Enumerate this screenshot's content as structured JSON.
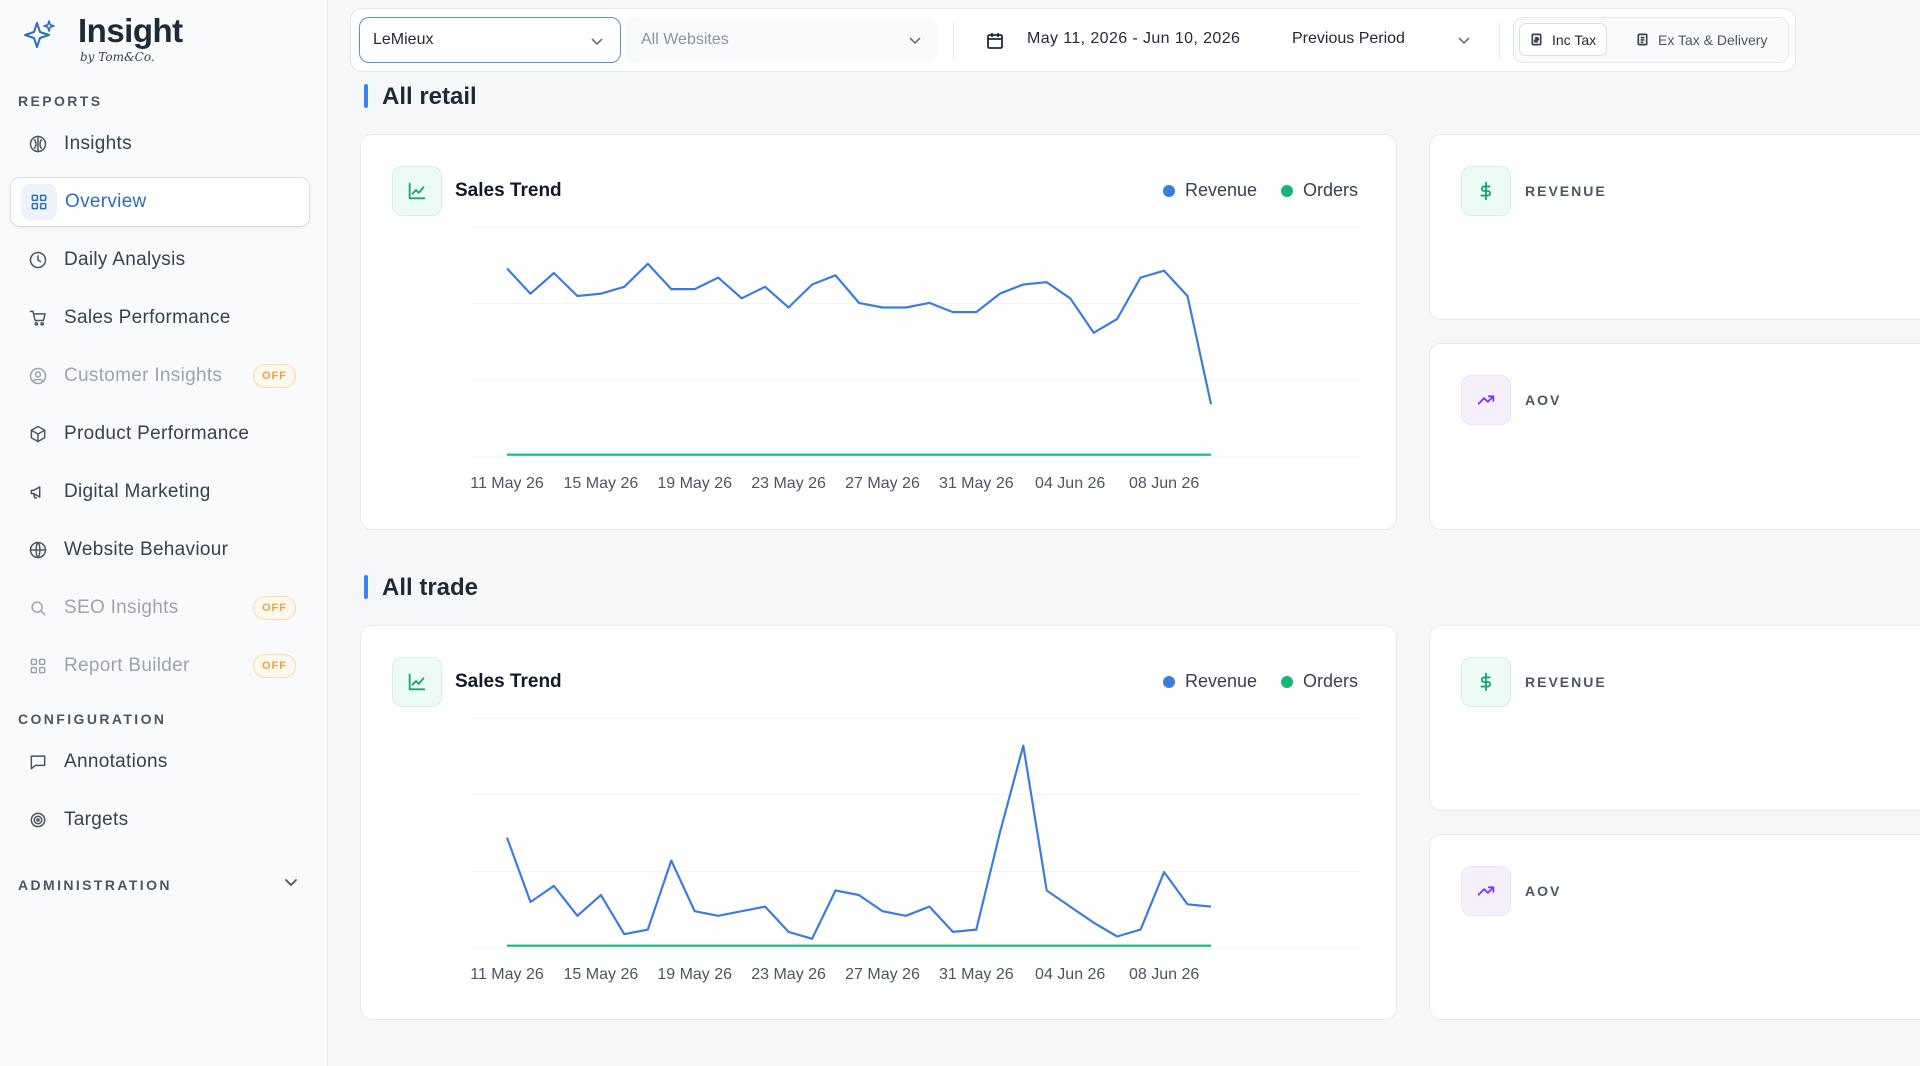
{
  "brand": {
    "title": "Insight",
    "subtitle": "by Tom&Co."
  },
  "sidebar": {
    "reports_label": "REPORTS",
    "config_label": "CONFIGURATION",
    "admin_label": "ADMINISTRATION",
    "items": [
      {
        "label": "Insights",
        "icon": "insights-icon"
      },
      {
        "label": "Overview",
        "icon": "grid-icon",
        "active": true
      },
      {
        "label": "Daily Analysis",
        "icon": "clock-icon"
      },
      {
        "label": "Sales Performance",
        "icon": "cart-icon"
      },
      {
        "label": "Customer Insights",
        "icon": "user-circle-icon",
        "badge": "OFF"
      },
      {
        "label": "Product Performance",
        "icon": "box-icon"
      },
      {
        "label": "Digital Marketing",
        "icon": "megaphone-icon"
      },
      {
        "label": "Website Behaviour",
        "icon": "globe-icon"
      },
      {
        "label": "SEO Insights",
        "icon": "search-icon",
        "badge": "OFF"
      },
      {
        "label": "Report Builder",
        "icon": "grid-icon",
        "badge": "OFF"
      }
    ],
    "config_items": [
      {
        "label": "Annotations",
        "icon": "message-icon"
      },
      {
        "label": "Targets",
        "icon": "target-icon"
      }
    ]
  },
  "topbar": {
    "brand_select": "LeMieux",
    "website_select_placeholder": "All Websites",
    "date_range": "May 11, 2026 - Jun 10, 2026",
    "compare": "Previous Period",
    "tax_on": "Inc Tax",
    "tax_off": "Ex Tax & Delivery"
  },
  "sections": [
    {
      "title": "All retail",
      "card_title": "Sales Trend",
      "legend_revenue": "Revenue",
      "legend_orders": "Orders",
      "metric_revenue": "REVENUE",
      "metric_aov": "AOV"
    },
    {
      "title": "All trade",
      "card_title": "Sales Trend",
      "legend_revenue": "Revenue",
      "legend_orders": "Orders",
      "metric_revenue": "REVENUE",
      "metric_aov": "AOV"
    }
  ],
  "colors": {
    "revenue": "#3b7ddd",
    "orders": "#17b57a",
    "accent": "#2f6fb3",
    "badge": "#f0a04b"
  },
  "chart_data": [
    {
      "type": "line",
      "title": "Sales Trend",
      "x_tick_labels": [
        "11 May 26",
        "15 May 26",
        "19 May 26",
        "23 May 26",
        "27 May 26",
        "31 May 26",
        "04 Jun 26",
        "08 Jun 26"
      ],
      "x": [
        "11 May 26",
        "12 May 26",
        "13 May 26",
        "14 May 26",
        "15 May 26",
        "16 May 26",
        "17 May 26",
        "18 May 26",
        "19 May 26",
        "20 May 26",
        "21 May 26",
        "22 May 26",
        "23 May 26",
        "24 May 26",
        "25 May 26",
        "26 May 26",
        "27 May 26",
        "28 May 26",
        "29 May 26",
        "30 May 26",
        "31 May 26",
        "01 Jun 26",
        "02 Jun 26",
        "03 Jun 26",
        "04 Jun 26",
        "05 Jun 26",
        "06 Jun 26",
        "07 Jun 26",
        "08 Jun 26",
        "09 Jun 26",
        "10 Jun 26"
      ],
      "series": [
        {
          "name": "Revenue",
          "values": [
            0.82,
            0.71,
            0.8,
            0.7,
            0.71,
            0.74,
            0.84,
            0.73,
            0.73,
            0.78,
            0.69,
            0.74,
            0.65,
            0.75,
            0.79,
            0.67,
            0.65,
            0.65,
            0.67,
            0.63,
            0.63,
            0.71,
            0.75,
            0.76,
            0.69,
            0.54,
            0.6,
            0.78,
            0.81,
            0.7,
            0.23
          ]
        },
        {
          "name": "Orders",
          "values": [
            0.01,
            0.01,
            0.01,
            0.01,
            0.01,
            0.01,
            0.01,
            0.01,
            0.01,
            0.01,
            0.01,
            0.01,
            0.01,
            0.01,
            0.01,
            0.01,
            0.01,
            0.01,
            0.01,
            0.01,
            0.01,
            0.01,
            0.01,
            0.01,
            0.01,
            0.01,
            0.01,
            0.01,
            0.01,
            0.01,
            0.01
          ]
        }
      ],
      "ylim": [
        0,
        1
      ],
      "grid": true
    },
    {
      "type": "line",
      "title": "Sales Trend",
      "x_tick_labels": [
        "11 May 26",
        "15 May 26",
        "19 May 26",
        "23 May 26",
        "27 May 26",
        "31 May 26",
        "04 Jun 26",
        "08 Jun 26"
      ],
      "x": [
        "11 May 26",
        "12 May 26",
        "13 May 26",
        "14 May 26",
        "15 May 26",
        "16 May 26",
        "17 May 26",
        "18 May 26",
        "19 May 26",
        "20 May 26",
        "21 May 26",
        "22 May 26",
        "23 May 26",
        "24 May 26",
        "25 May 26",
        "26 May 26",
        "27 May 26",
        "28 May 26",
        "29 May 26",
        "30 May 26",
        "31 May 26",
        "01 Jun 26",
        "02 Jun 26",
        "03 Jun 26",
        "04 Jun 26",
        "05 Jun 26",
        "06 Jun 26",
        "07 Jun 26",
        "08 Jun 26",
        "09 Jun 26",
        "10 Jun 26"
      ],
      "series": [
        {
          "name": "Revenue",
          "values": [
            0.48,
            0.2,
            0.27,
            0.14,
            0.23,
            0.06,
            0.08,
            0.38,
            0.16,
            0.14,
            0.16,
            0.18,
            0.07,
            0.04,
            0.25,
            0.23,
            0.16,
            0.14,
            0.18,
            0.07,
            0.08,
            0.5,
            0.88,
            0.25,
            0.18,
            0.11,
            0.05,
            0.08,
            0.33,
            0.19,
            0.18
          ]
        },
        {
          "name": "Orders",
          "values": [
            0.01,
            0.01,
            0.01,
            0.01,
            0.01,
            0.01,
            0.01,
            0.01,
            0.01,
            0.01,
            0.01,
            0.01,
            0.01,
            0.01,
            0.01,
            0.01,
            0.01,
            0.01,
            0.01,
            0.01,
            0.01,
            0.01,
            0.01,
            0.01,
            0.01,
            0.01,
            0.01,
            0.01,
            0.01,
            0.01,
            0.01
          ]
        }
      ],
      "ylim": [
        0,
        1
      ],
      "grid": true
    }
  ]
}
